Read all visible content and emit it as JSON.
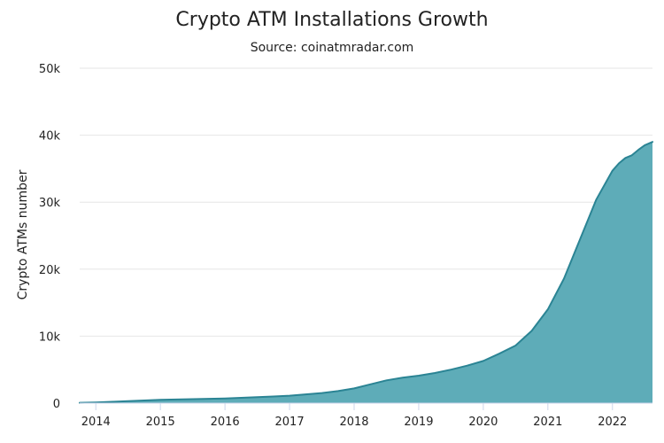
{
  "chart_data": {
    "type": "area",
    "title": "Crypto ATM Installations Growth",
    "subtitle": "Source: coinatmradar.com",
    "xlabel": "",
    "ylabel": "Crypto ATMs number",
    "x_ticks": [
      "2014",
      "2015",
      "2016",
      "2017",
      "2018",
      "2019",
      "2020",
      "2021",
      "2022"
    ],
    "y_ticks": [
      "0",
      "10k",
      "20k",
      "30k",
      "40k",
      "50k"
    ],
    "ylim": [
      0,
      50000
    ],
    "xlim": [
      2013.75,
      2022.62
    ],
    "grid": true,
    "legend": "none",
    "colors": {
      "fill": "#5eacb8",
      "line": "#2b8494"
    },
    "series": [
      {
        "x": [
          2013.75,
          2014.0,
          2014.25,
          2014.5,
          2014.75,
          2015.0,
          2015.25,
          2015.5,
          2015.75,
          2016.0,
          2016.25,
          2016.5,
          2016.75,
          2017.0,
          2017.25,
          2017.5,
          2017.75,
          2018.0,
          2018.25,
          2018.5,
          2018.75,
          2019.0,
          2019.25,
          2019.5,
          2019.75,
          2020.0,
          2020.25,
          2020.5,
          2020.75,
          2021.0,
          2021.25,
          2021.5,
          2021.75,
          2022.0,
          2022.1,
          2022.2,
          2022.3,
          2022.4,
          2022.5,
          2022.62
        ],
        "values": [
          50,
          100,
          200,
          300,
          400,
          500,
          550,
          600,
          650,
          700,
          800,
          900,
          1000,
          1100,
          1300,
          1500,
          1800,
          2200,
          2800,
          3400,
          3800,
          4100,
          4500,
          5000,
          5600,
          6300,
          7400,
          8600,
          10800,
          14000,
          18600,
          24500,
          30400,
          34700,
          35800,
          36600,
          37000,
          37800,
          38500,
          39000
        ]
      }
    ]
  }
}
